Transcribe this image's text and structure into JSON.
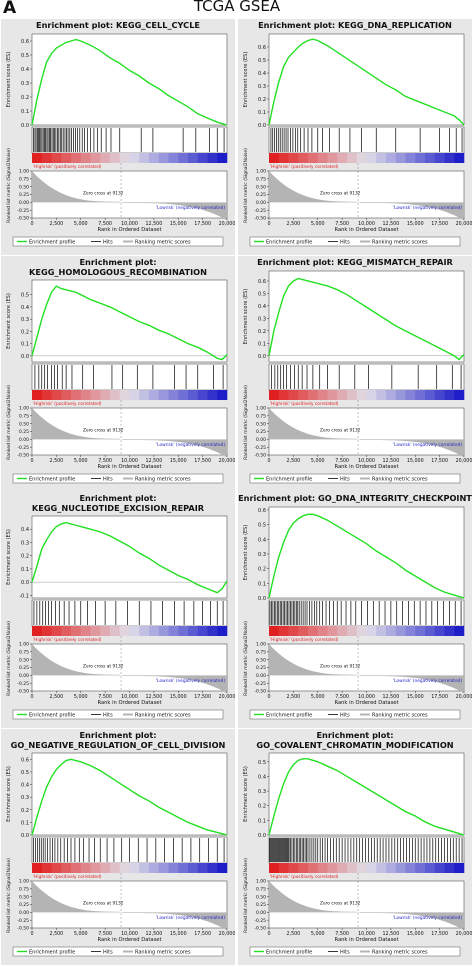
{
  "figure": {
    "letter": "A",
    "title": "TCGA GSEA"
  },
  "common": {
    "es_ylabel": "Enrichment score (ES)",
    "metric_ylabel": "Ranked list metric (Signal2Noise)",
    "xlabel": "Rank in Ordered Dataset",
    "highrisk_label": "'Highrisk' (positively correlated)",
    "lowrisk_label": "'Lowrisk' (negatively correlated)",
    "zero_cross": "Zero cross at 9132",
    "legend": [
      "Enrichment profile",
      "Hits",
      "Ranking metric scores"
    ],
    "x_ticks": [
      "0",
      "2,500",
      "5,000",
      "7,500",
      "10,000",
      "12,500",
      "15,000",
      "17,500",
      "20,000"
    ],
    "metric_ticks": [
      "1.00",
      "0.75",
      "0.50",
      "0.25",
      "0.00",
      "-0.25",
      "-0.50"
    ]
  },
  "colors": {
    "enrichment": "#22e022",
    "metric": "#b4b4b4",
    "panel_bg": "#e7e7e7",
    "high": "#e02020",
    "low": "#1e1ec8",
    "zero_line": "#8080a0"
  },
  "chart_data": [
    {
      "type": "line",
      "title_lines": [
        "Enrichment plot: KEGG_CELL_CYCLE"
      ],
      "x": [
        0,
        500,
        1000,
        1500,
        2000,
        2500,
        3000,
        3500,
        4000,
        4500,
        5000,
        6000,
        7000,
        8000,
        9000,
        10000,
        11000,
        12000,
        13000,
        14000,
        15000,
        16000,
        17000,
        18000,
        19000,
        19500,
        20000
      ],
      "es": [
        0.0,
        0.18,
        0.33,
        0.45,
        0.51,
        0.55,
        0.57,
        0.59,
        0.6,
        0.61,
        0.6,
        0.57,
        0.53,
        0.48,
        0.44,
        0.39,
        0.35,
        0.3,
        0.26,
        0.21,
        0.17,
        0.13,
        0.08,
        0.05,
        0.02,
        0.01,
        0.0
      ],
      "es_ticks": [
        "0.6",
        "0.5",
        "0.4",
        "0.3",
        "0.2",
        "0.1",
        "0.0"
      ],
      "ylim": [
        0,
        0.65
      ],
      "x_range": [
        0,
        20000
      ],
      "metric_range": [
        -0.5,
        1.0
      ],
      "hits": [
        150,
        300,
        420,
        550,
        650,
        780,
        900,
        1020,
        1150,
        1280,
        1400,
        1530,
        1650,
        1780,
        1900,
        2050,
        2180,
        2300,
        2450,
        2600,
        2750,
        2900,
        3050,
        3200,
        3380,
        3550,
        3700,
        3880,
        4050,
        4250,
        4450,
        4650,
        4900,
        5150,
        5400,
        5700,
        6000,
        6350,
        6700,
        7100,
        7600,
        8100,
        9000,
        11200,
        12400,
        15500,
        16800,
        18200,
        19000,
        19700
      ]
    },
    {
      "type": "line",
      "title_lines": [
        "Enrichment plot: KEGG_DNA_REPLICATION"
      ],
      "x": [
        0,
        500,
        1000,
        1500,
        2000,
        2500,
        3000,
        3500,
        4000,
        4500,
        5000,
        6000,
        7000,
        8000,
        9000,
        10000,
        11000,
        12000,
        13000,
        14000,
        15000,
        16000,
        17000,
        18000,
        19000,
        19500,
        20000
      ],
      "es": [
        0.0,
        0.18,
        0.33,
        0.45,
        0.52,
        0.56,
        0.6,
        0.63,
        0.65,
        0.66,
        0.65,
        0.61,
        0.56,
        0.51,
        0.46,
        0.41,
        0.36,
        0.31,
        0.27,
        0.22,
        0.19,
        0.16,
        0.13,
        0.1,
        0.07,
        0.04,
        0.0
      ],
      "es_ticks": [
        "0.6",
        "0.5",
        "0.4",
        "0.3",
        "0.2",
        "0.1",
        "0.0"
      ],
      "ylim": [
        0,
        0.7
      ],
      "x_range": [
        0,
        20000
      ],
      "metric_range": [
        -0.5,
        1.0
      ],
      "hits": [
        200,
        380,
        560,
        760,
        950,
        1150,
        1350,
        1550,
        1750,
        1950,
        2200,
        2450,
        2700,
        2950,
        3250,
        3600,
        4000,
        4400,
        5000,
        5500,
        6200,
        7200,
        8300,
        9500,
        11000,
        13000,
        15500,
        17500,
        18500,
        19200,
        19800
      ]
    },
    {
      "type": "line",
      "title_lines": [
        "Enrichment plot:",
        "KEGG_HOMOLOGOUS_RECOMBINATION"
      ],
      "x": [
        0,
        500,
        1000,
        1500,
        2000,
        2500,
        3000,
        3500,
        4000,
        4500,
        5000,
        6000,
        7000,
        8000,
        9000,
        10000,
        11000,
        12000,
        13000,
        14000,
        15000,
        16000,
        17000,
        18000,
        19000,
        19500,
        20000
      ],
      "es": [
        0.0,
        0.15,
        0.3,
        0.42,
        0.52,
        0.57,
        0.55,
        0.54,
        0.53,
        0.52,
        0.5,
        0.46,
        0.43,
        0.4,
        0.36,
        0.32,
        0.28,
        0.25,
        0.21,
        0.18,
        0.14,
        0.1,
        0.07,
        0.03,
        -0.02,
        -0.03,
        0.01
      ],
      "es_ticks": [
        "0.5",
        "0.4",
        "0.3",
        "0.2",
        "0.1",
        "0.0"
      ],
      "ylim": [
        -0.05,
        0.62
      ],
      "x_range": [
        0,
        20000
      ],
      "metric_range": [
        -0.5,
        1.0
      ],
      "hits": [
        300,
        700,
        1000,
        1300,
        1600,
        2000,
        2300,
        2600,
        3100,
        3500,
        4100,
        5200,
        6300,
        8200,
        9300,
        10800,
        12400,
        14600,
        15800,
        17000,
        18600,
        19600
      ]
    },
    {
      "type": "line",
      "title_lines": [
        "Enrichment plot: KEGG_MISMATCH_REPAIR"
      ],
      "x": [
        0,
        500,
        1000,
        1500,
        2000,
        2500,
        3000,
        3500,
        4000,
        4500,
        5000,
        6000,
        7000,
        8000,
        9000,
        10000,
        11000,
        12000,
        13000,
        14000,
        15000,
        16000,
        17000,
        18000,
        19000,
        19500,
        20000
      ],
      "es": [
        0.0,
        0.2,
        0.35,
        0.48,
        0.56,
        0.6,
        0.62,
        0.61,
        0.6,
        0.59,
        0.58,
        0.56,
        0.53,
        0.49,
        0.44,
        0.39,
        0.34,
        0.29,
        0.24,
        0.2,
        0.16,
        0.12,
        0.08,
        0.04,
        0.0,
        -0.03,
        0.01
      ],
      "es_ticks": [
        "0.6",
        "0.5",
        "0.4",
        "0.3",
        "0.2",
        "0.1",
        "0.0"
      ],
      "ylim": [
        -0.05,
        0.68
      ],
      "x_range": [
        0,
        20000
      ],
      "metric_range": [
        -0.5,
        1.0
      ],
      "hits": [
        250,
        600,
        900,
        1200,
        1500,
        1800,
        2200,
        2600,
        3000,
        3400,
        3900,
        4500,
        5200,
        6000,
        7200,
        8800,
        10200,
        12600,
        15300,
        17200,
        18800,
        19700
      ]
    },
    {
      "type": "line",
      "title_lines": [
        "Enrichment plot:",
        "KEGG_NUCLEOTIDE_EXCISION_REPAIR"
      ],
      "x": [
        0,
        500,
        1000,
        1500,
        2000,
        2500,
        3000,
        3500,
        4000,
        4500,
        5000,
        6000,
        7000,
        8000,
        9000,
        10000,
        11000,
        12000,
        13000,
        14000,
        15000,
        16000,
        17000,
        18000,
        19000,
        19500,
        20000
      ],
      "es": [
        0.0,
        0.12,
        0.25,
        0.32,
        0.38,
        0.42,
        0.44,
        0.45,
        0.44,
        0.43,
        0.42,
        0.4,
        0.38,
        0.35,
        0.31,
        0.27,
        0.22,
        0.18,
        0.13,
        0.09,
        0.05,
        0.02,
        -0.02,
        -0.05,
        -0.08,
        -0.05,
        0.01
      ],
      "es_ticks": [
        "0.4",
        "0.3",
        "0.2",
        "0.1",
        "0.0",
        "-0.1"
      ],
      "ylim": [
        -0.12,
        0.5
      ],
      "x_range": [
        0,
        20000
      ],
      "metric_range": [
        -0.5,
        1.0
      ],
      "hits": [
        200,
        500,
        800,
        1100,
        1400,
        1700,
        2000,
        2400,
        2800,
        3300,
        3800,
        4400,
        5000,
        5700,
        6500,
        7500,
        8600,
        9800,
        11000,
        12200,
        13400,
        14600,
        15600,
        16600,
        17500,
        18300,
        19000,
        19600
      ]
    },
    {
      "type": "line",
      "title_lines": [
        "Enrichment plot: GO_DNA_INTEGRITY_CHECKPOINT"
      ],
      "x": [
        0,
        500,
        1000,
        1500,
        2000,
        2500,
        3000,
        3500,
        4000,
        4500,
        5000,
        6000,
        7000,
        8000,
        9000,
        10000,
        11000,
        12000,
        13000,
        14000,
        15000,
        16000,
        17000,
        18000,
        19000,
        19500,
        20000
      ],
      "es": [
        0.0,
        0.15,
        0.28,
        0.38,
        0.46,
        0.51,
        0.54,
        0.56,
        0.57,
        0.57,
        0.56,
        0.53,
        0.49,
        0.45,
        0.41,
        0.37,
        0.32,
        0.28,
        0.24,
        0.19,
        0.15,
        0.11,
        0.07,
        0.04,
        0.02,
        0.01,
        0.0
      ],
      "es_ticks": [
        "0.6",
        "0.5",
        "0.4",
        "0.3",
        "0.2",
        "0.1",
        "0.0"
      ],
      "ylim": [
        0,
        0.62
      ],
      "x_range": [
        0,
        20000
      ],
      "metric_range": [
        -0.5,
        1.0
      ],
      "hits": [
        100,
        250,
        400,
        550,
        700,
        850,
        1000,
        1150,
        1300,
        1450,
        1600,
        1750,
        1900,
        2050,
        2200,
        2350,
        2500,
        2650,
        2800,
        2950,
        3100,
        3300,
        3500,
        3700,
        3900,
        4150,
        4400,
        4650,
        4900,
        5200,
        5500,
        5850,
        6200,
        6600,
        7000,
        7400,
        7900,
        8400,
        8900,
        9500,
        10100,
        10700,
        11300,
        11900,
        12500,
        13100,
        13700,
        14300,
        14900,
        15500,
        16100,
        16700,
        17300,
        17900,
        18500,
        19100,
        19700
      ]
    },
    {
      "type": "line",
      "title_lines": [
        "Enrichment plot:",
        "GO_NEGATIVE_REGULATION_OF_CELL_DIVISION"
      ],
      "x": [
        0,
        500,
        1000,
        1500,
        2000,
        2500,
        3000,
        3500,
        4000,
        4500,
        5000,
        6000,
        7000,
        8000,
        9000,
        10000,
        11000,
        12000,
        13000,
        14000,
        15000,
        16000,
        17000,
        18000,
        19000,
        19500,
        20000
      ],
      "es": [
        0.0,
        0.14,
        0.27,
        0.38,
        0.46,
        0.52,
        0.56,
        0.59,
        0.6,
        0.59,
        0.58,
        0.55,
        0.51,
        0.46,
        0.41,
        0.36,
        0.31,
        0.27,
        0.22,
        0.18,
        0.14,
        0.1,
        0.07,
        0.04,
        0.02,
        0.01,
        0.0
      ],
      "es_ticks": [
        "0.6",
        "0.5",
        "0.4",
        "0.3",
        "0.2",
        "0.1",
        "0.0"
      ],
      "ylim": [
        0,
        0.65
      ],
      "x_range": [
        0,
        20000
      ],
      "metric_range": [
        -0.5,
        1.0
      ],
      "hits": [
        150,
        350,
        550,
        750,
        950,
        1150,
        1350,
        1600,
        1850,
        2100,
        2350,
        2650,
        2950,
        3300,
        3650,
        4000,
        4400,
        4850,
        5300,
        5850,
        6400,
        7000,
        7700,
        8400,
        9200,
        10000,
        10900,
        11800,
        12700,
        13600,
        14500,
        15400,
        16300,
        17200,
        18100,
        19000,
        19700
      ]
    },
    {
      "type": "line",
      "title_lines": [
        "Enrichment plot:",
        "GO_COVALENT_CHROMATIN_MODIFICATION"
      ],
      "x": [
        0,
        500,
        1000,
        1500,
        2000,
        2500,
        3000,
        3500,
        4000,
        4500,
        5000,
        6000,
        7000,
        8000,
        9000,
        10000,
        11000,
        12000,
        13000,
        14000,
        15000,
        16000,
        17000,
        18000,
        19000,
        19500,
        20000
      ],
      "es": [
        0.0,
        0.13,
        0.25,
        0.35,
        0.43,
        0.48,
        0.51,
        0.52,
        0.52,
        0.51,
        0.5,
        0.47,
        0.44,
        0.4,
        0.36,
        0.32,
        0.28,
        0.24,
        0.2,
        0.16,
        0.13,
        0.09,
        0.06,
        0.04,
        0.02,
        0.01,
        0.0
      ],
      "es_ticks": [
        "0.5",
        "0.4",
        "0.3",
        "0.2",
        "0.1",
        "0.0"
      ],
      "ylim": [
        0,
        0.56
      ],
      "x_range": [
        0,
        20000
      ],
      "metric_range": [
        -0.5,
        1.0
      ],
      "hits": [
        60,
        160,
        260,
        360,
        460,
        560,
        660,
        760,
        860,
        960,
        1060,
        1160,
        1260,
        1360,
        1460,
        1560,
        1660,
        1760,
        1860,
        1960,
        2060,
        2200,
        2350,
        2500,
        2650,
        2800,
        2950,
        3100,
        3250,
        3400,
        3550,
        3700,
        3850,
        4000,
        4200,
        4400,
        4600,
        4800,
        5000,
        5250,
        5500,
        5750,
        6000,
        6300,
        6600,
        6900,
        7200,
        7500,
        7800,
        8100,
        8400,
        8700,
        9000,
        9300,
        9600,
        9900,
        10200,
        10500,
        10800,
        11100,
        11400,
        11700,
        12000,
        12300,
        12600,
        12900,
        13200,
        13500,
        13800,
        14100,
        14400,
        14700,
        15000,
        15300,
        15600,
        15900,
        16200,
        16500,
        16800,
        17100,
        17400,
        17700,
        18000,
        18300,
        18600,
        18900,
        19200,
        19500,
        19800
      ]
    }
  ]
}
